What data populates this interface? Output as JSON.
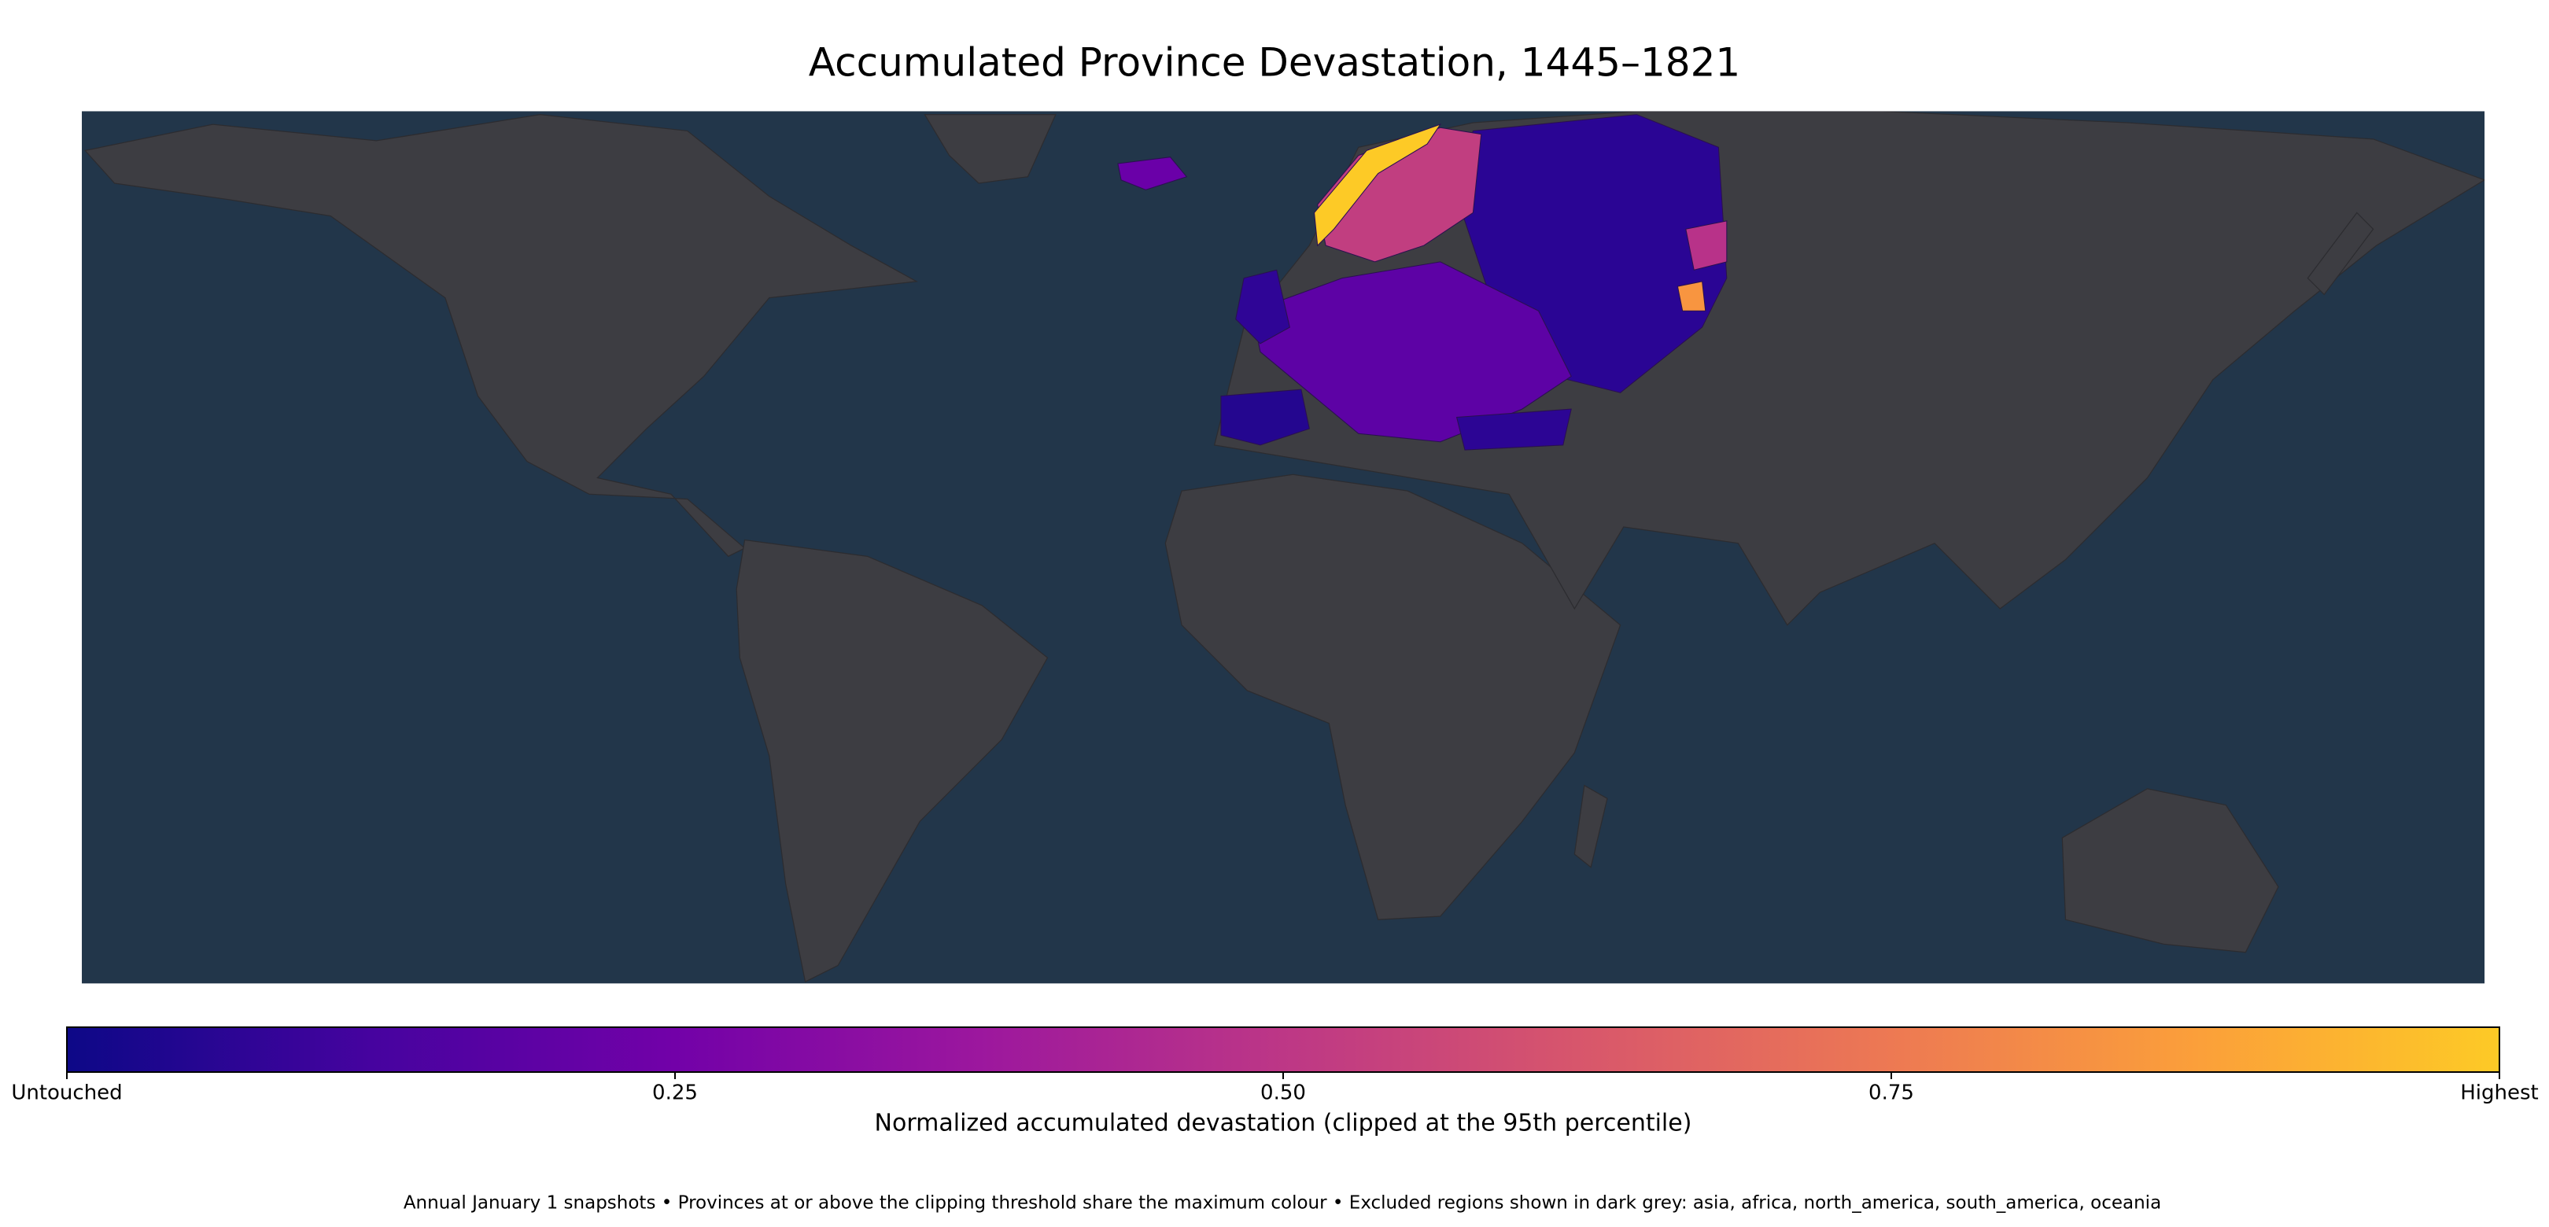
{
  "chart_data": {
    "type": "choropleth",
    "title": "Accumulated Province Devastation, 1445–1821",
    "colorbar": {
      "label": "Normalized accumulated devastation (clipped at the 95th percentile)",
      "lim": [
        0,
        1
      ],
      "ticks": [
        {
          "value": 0,
          "label": "Untouched"
        },
        0.25,
        {
          "value": 0.5,
          "label": "0.50"
        },
        0.75,
        {
          "value": 1,
          "label": "Highest"
        }
      ],
      "colors": [
        "#0d0887",
        "#46039f",
        "#7201a8",
        "#9c179e",
        "#bd3786",
        "#d8576b",
        "#ed7953",
        "#fb9f3a",
        "#fdca26"
      ]
    },
    "footnote": "Annual January 1 snapshots • Provinces at or above the clipping threshold share the maximum colour • Excluded regions shown in dark grey: asia, africa, north_america, south_america, oceania"
  }
}
